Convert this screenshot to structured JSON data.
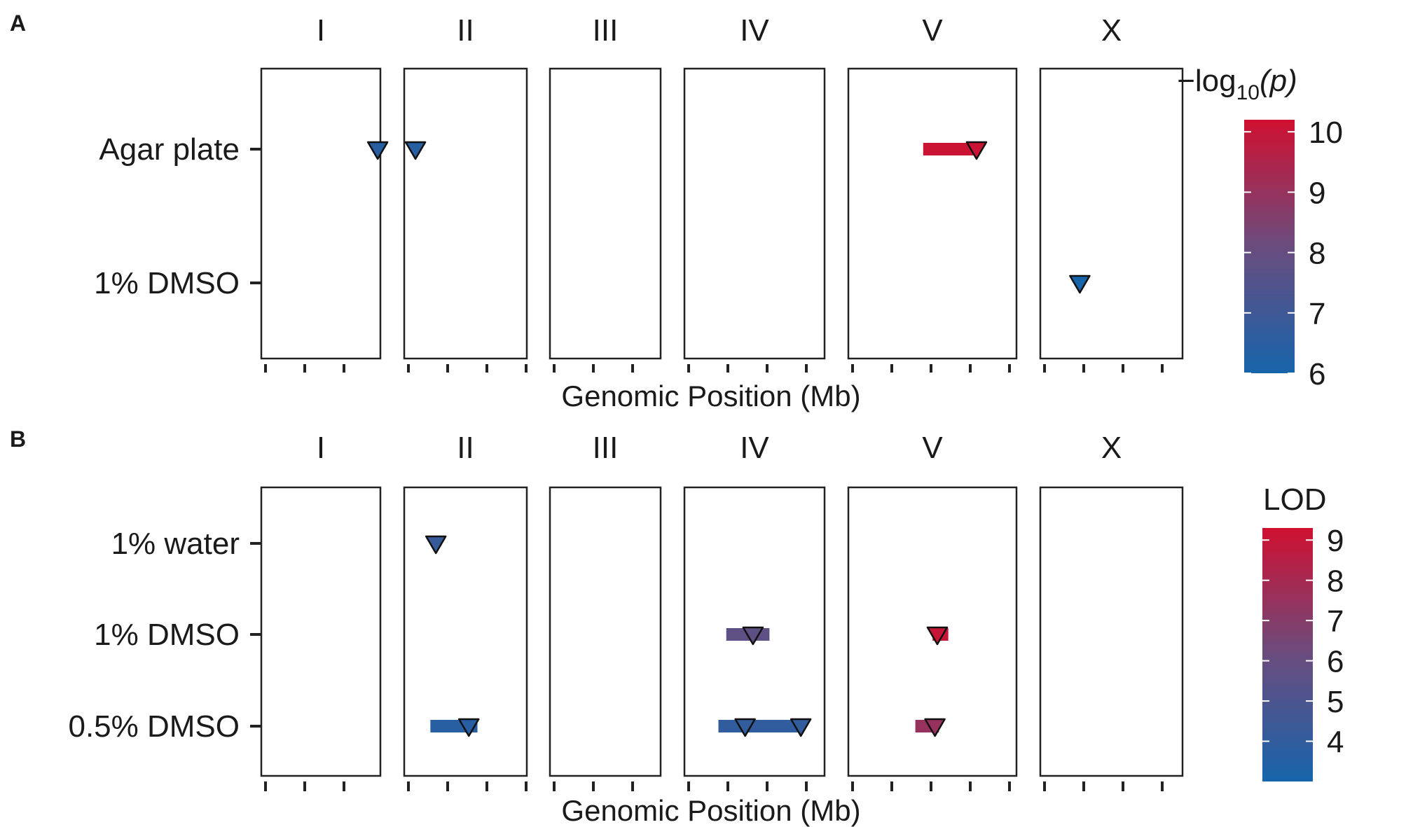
{
  "legend_colors": {
    "low": "#1764ab",
    "mid": "#6a4c7e",
    "high": "#d01030"
  },
  "chart_data": [
    {
      "panel": "A",
      "type": "scatter",
      "chromosomes": [
        "I",
        "II",
        "III",
        "IV",
        "V",
        "X"
      ],
      "rows": [
        "Agar plate",
        "1% DMSO"
      ],
      "xlabel": "Genomic Position (Mb)",
      "legend": {
        "title_main": "−log",
        "title_sub": "10",
        "title_tail": "(p)",
        "min": 6,
        "max": 10.2,
        "ticks": [
          "6",
          "7",
          "8",
          "9",
          "10"
        ],
        "placement": "right"
      },
      "peaks": [
        {
          "row": "Agar plate",
          "chrom": "I",
          "peak": 14.3,
          "ci": [
            14.3,
            14.3
          ],
          "value": 6.4
        },
        {
          "row": "Agar plate",
          "chrom": "II",
          "peak": 0.9,
          "ci": [
            0.9,
            0.9
          ],
          "value": 6.4
        },
        {
          "row": "Agar plate",
          "chrom": "V",
          "peak": 15.8,
          "ci": [
            9.0,
            16.1
          ],
          "value": 10.1
        },
        {
          "row": "1% DMSO",
          "chrom": "X",
          "peak": 4.5,
          "ci": [
            4.5,
            4.5
          ],
          "value": 6.0
        }
      ]
    },
    {
      "panel": "B",
      "type": "scatter",
      "chromosomes": [
        "I",
        "II",
        "III",
        "IV",
        "V",
        "X"
      ],
      "rows": [
        "1% water",
        "1% DMSO",
        "0.5% DMSO"
      ],
      "xlabel": "Genomic Position (Mb)",
      "legend": {
        "title_main": "LOD",
        "min": 3.0,
        "max": 9.3,
        "ticks": [
          "4",
          "5",
          "6",
          "7",
          "8",
          "9"
        ],
        "placement": "right"
      },
      "peaks": [
        {
          "row": "1% water",
          "chrom": "II",
          "peak": 3.5,
          "ci": [
            3.5,
            3.5
          ],
          "value": 4.2
        },
        {
          "row": "1% DMSO",
          "chrom": "IV",
          "peak": 8.2,
          "ci": [
            4.8,
            10.3
          ],
          "value": 5.7
        },
        {
          "row": "1% DMSO",
          "chrom": "V",
          "peak": 10.8,
          "ci": [
            10.2,
            12.2
          ],
          "value": 9.0
        },
        {
          "row": "0.5% DMSO",
          "chrom": "II",
          "peak": 7.7,
          "ci": [
            2.8,
            8.8
          ],
          "value": 3.6
        },
        {
          "row": "0.5% DMSO",
          "chrom": "IV",
          "peak": 7.2,
          "ci": [
            3.8,
            14.3
          ],
          "value": 4.0
        },
        {
          "row": "0.5% DMSO",
          "chrom": "IV",
          "peak": 14.3,
          "ci": [
            3.8,
            14.3
          ],
          "value": 4.0
        },
        {
          "row": "0.5% DMSO",
          "chrom": "V",
          "peak": 10.5,
          "ci": [
            8.0,
            11.0
          ],
          "value": 7.5
        }
      ]
    }
  ]
}
